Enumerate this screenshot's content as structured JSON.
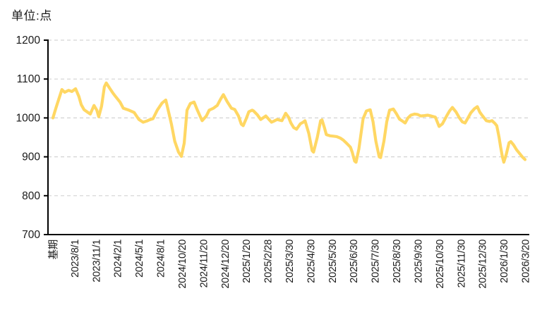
{
  "chart_data": {
    "type": "line",
    "title": "单位:点",
    "xlabel": "",
    "ylabel": "",
    "ylim": [
      700,
      1200
    ],
    "y_ticks": [
      700,
      800,
      900,
      1000,
      1100,
      1200
    ],
    "grid": "horizontal-dashed",
    "legend": "none",
    "x_labels": [
      "基期",
      "2023/8/1",
      "2023/11/1",
      "2024/2/1",
      "2024/5/1",
      "2024/8/1",
      "2024/10/20",
      "2024/11/20",
      "2024/12/20",
      "2025/1/20",
      "2025/2/28",
      "2025/3/30",
      "2025/4/30",
      "2025/5/30",
      "2025/6/30",
      "2025/7/30",
      "2025/8/30",
      "2025/9/30",
      "2025/10/30",
      "2025/11/30",
      "2025/12/30",
      "2026/1/30",
      "2026/3/20"
    ],
    "colors": {
      "line": "#FFD763",
      "grid": "#D3D3D3",
      "axis": "#000000",
      "text": "#1A1A1A",
      "background": "#FFFFFF"
    },
    "series": [
      {
        "name": "index-line",
        "color": "#FFD763",
        "points": [
          [
            0.0,
            1000
          ],
          [
            0.007,
            1028
          ],
          [
            0.019,
            1073
          ],
          [
            0.025,
            1066
          ],
          [
            0.033,
            1071
          ],
          [
            0.04,
            1068
          ],
          [
            0.048,
            1075
          ],
          [
            0.055,
            1055
          ],
          [
            0.06,
            1034
          ],
          [
            0.066,
            1021
          ],
          [
            0.072,
            1016
          ],
          [
            0.079,
            1010
          ],
          [
            0.087,
            1032
          ],
          [
            0.093,
            1020
          ],
          [
            0.097,
            1003
          ],
          [
            0.103,
            1030
          ],
          [
            0.109,
            1080
          ],
          [
            0.113,
            1090
          ],
          [
            0.121,
            1075
          ],
          [
            0.127,
            1064
          ],
          [
            0.134,
            1053
          ],
          [
            0.142,
            1041
          ],
          [
            0.149,
            1025
          ],
          [
            0.161,
            1020
          ],
          [
            0.172,
            1014
          ],
          [
            0.182,
            996
          ],
          [
            0.191,
            989
          ],
          [
            0.199,
            992
          ],
          [
            0.204,
            995
          ],
          [
            0.212,
            998
          ],
          [
            0.221,
            1020
          ],
          [
            0.231,
            1038
          ],
          [
            0.239,
            1046
          ],
          [
            0.246,
            1010
          ],
          [
            0.251,
            984
          ],
          [
            0.258,
            940
          ],
          [
            0.266,
            912
          ],
          [
            0.272,
            901
          ],
          [
            0.278,
            935
          ],
          [
            0.284,
            1020
          ],
          [
            0.291,
            1037
          ],
          [
            0.299,
            1041
          ],
          [
            0.306,
            1020
          ],
          [
            0.316,
            993
          ],
          [
            0.325,
            1005
          ],
          [
            0.331,
            1020
          ],
          [
            0.34,
            1025
          ],
          [
            0.348,
            1032
          ],
          [
            0.355,
            1048
          ],
          [
            0.361,
            1060
          ],
          [
            0.369,
            1042
          ],
          [
            0.378,
            1025
          ],
          [
            0.385,
            1022
          ],
          [
            0.393,
            1005
          ],
          [
            0.399,
            984
          ],
          [
            0.403,
            980
          ],
          [
            0.41,
            1000
          ],
          [
            0.415,
            1016
          ],
          [
            0.422,
            1020
          ],
          [
            0.425,
            1018
          ],
          [
            0.433,
            1008
          ],
          [
            0.44,
            996
          ],
          [
            0.451,
            1005
          ],
          [
            0.457,
            997
          ],
          [
            0.463,
            989
          ],
          [
            0.47,
            993
          ],
          [
            0.475,
            996
          ],
          [
            0.481,
            994
          ],
          [
            0.485,
            993
          ],
          [
            0.493,
            1012
          ],
          [
            0.499,
            1002
          ],
          [
            0.504,
            987
          ],
          [
            0.51,
            975
          ],
          [
            0.516,
            971
          ],
          [
            0.524,
            985
          ],
          [
            0.53,
            989
          ],
          [
            0.534,
            993
          ],
          [
            0.542,
            960
          ],
          [
            0.549,
            916
          ],
          [
            0.552,
            912
          ],
          [
            0.56,
            950
          ],
          [
            0.567,
            993
          ],
          [
            0.57,
            995
          ],
          [
            0.575,
            975
          ],
          [
            0.579,
            957
          ],
          [
            0.587,
            954
          ],
          [
            0.594,
            953
          ],
          [
            0.601,
            952
          ],
          [
            0.609,
            948
          ],
          [
            0.615,
            943
          ],
          [
            0.622,
            935
          ],
          [
            0.63,
            925
          ],
          [
            0.634,
            912
          ],
          [
            0.639,
            889
          ],
          [
            0.642,
            886
          ],
          [
            0.648,
            920
          ],
          [
            0.657,
            998
          ],
          [
            0.664,
            1018
          ],
          [
            0.672,
            1021
          ],
          [
            0.678,
            990
          ],
          [
            0.684,
            940
          ],
          [
            0.691,
            900
          ],
          [
            0.694,
            898
          ],
          [
            0.701,
            940
          ],
          [
            0.707,
            990
          ],
          [
            0.713,
            1020
          ],
          [
            0.721,
            1023
          ],
          [
            0.728,
            1010
          ],
          [
            0.734,
            997
          ],
          [
            0.739,
            993
          ],
          [
            0.746,
            987
          ],
          [
            0.752,
            1000
          ],
          [
            0.758,
            1007
          ],
          [
            0.766,
            1010
          ],
          [
            0.772,
            1009
          ],
          [
            0.779,
            1005
          ],
          [
            0.787,
            1006
          ],
          [
            0.794,
            1007
          ],
          [
            0.801,
            1005
          ],
          [
            0.81,
            1002
          ],
          [
            0.818,
            978
          ],
          [
            0.825,
            985
          ],
          [
            0.834,
            1005
          ],
          [
            0.84,
            1018
          ],
          [
            0.846,
            1027
          ],
          [
            0.854,
            1015
          ],
          [
            0.861,
            1000
          ],
          [
            0.867,
            990
          ],
          [
            0.873,
            987
          ],
          [
            0.879,
            1000
          ],
          [
            0.885,
            1013
          ],
          [
            0.893,
            1024
          ],
          [
            0.899,
            1029
          ],
          [
            0.904,
            1015
          ],
          [
            0.91,
            1005
          ],
          [
            0.918,
            993
          ],
          [
            0.925,
            991
          ],
          [
            0.93,
            993
          ],
          [
            0.936,
            986
          ],
          [
            0.94,
            980
          ],
          [
            0.945,
            950
          ],
          [
            0.948,
            927
          ],
          [
            0.952,
            900
          ],
          [
            0.955,
            886
          ],
          [
            0.96,
            905
          ],
          [
            0.966,
            936
          ],
          [
            0.97,
            939
          ],
          [
            0.976,
            930
          ],
          [
            0.982,
            918
          ],
          [
            0.988,
            909
          ],
          [
            0.994,
            900
          ],
          [
            1.0,
            893
          ]
        ]
      }
    ]
  }
}
